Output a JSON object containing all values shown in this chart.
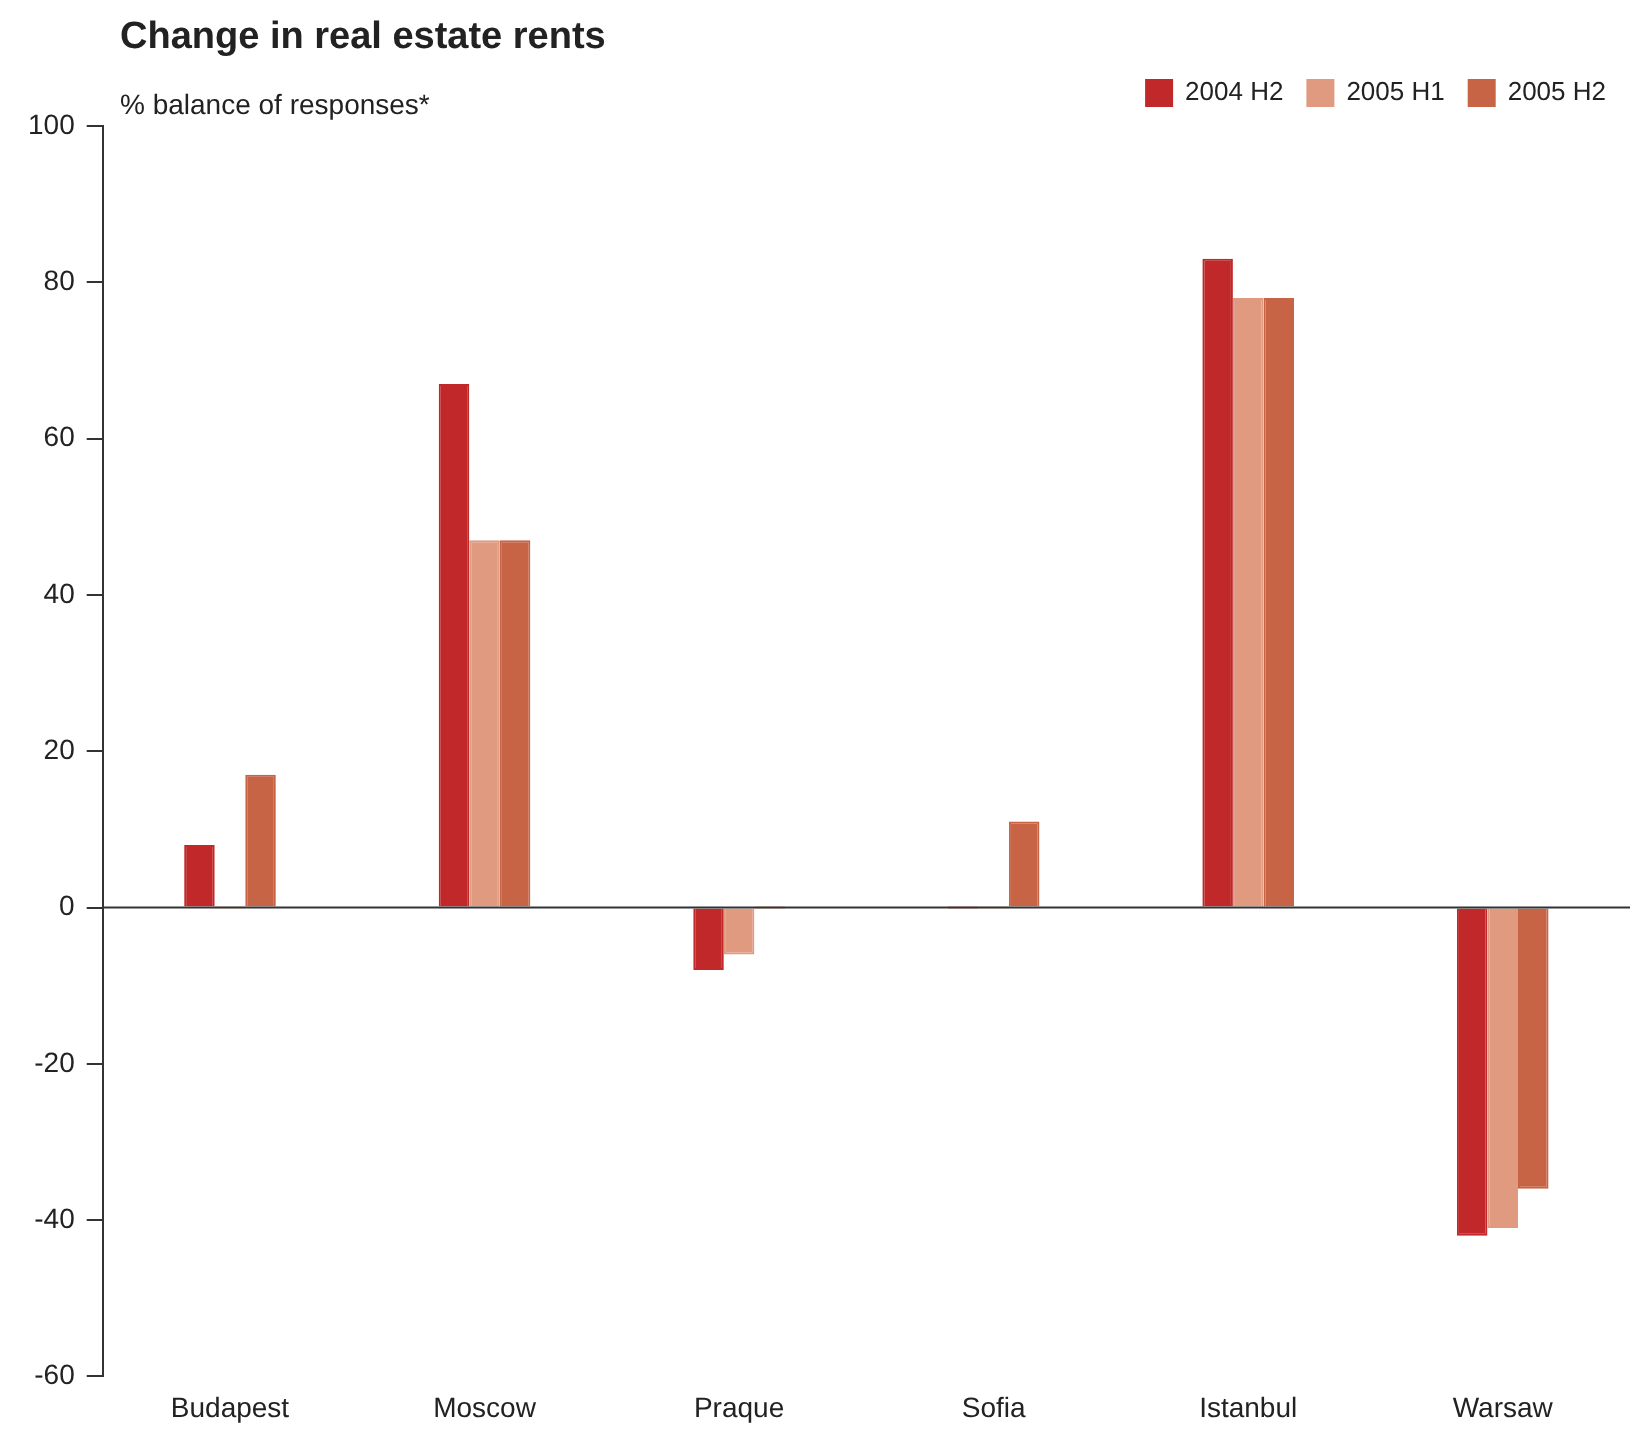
{
  "chart_data": {
    "type": "bar",
    "title": "Change in real estate rents",
    "ylabel": "% balance of responses*",
    "categories": [
      "Budapest",
      "Moscow",
      "Praque",
      "Sofia",
      "Istanbul",
      "Warsaw"
    ],
    "series": [
      {
        "name": "2004 H2",
        "color": "#c0282a",
        "values": [
          8,
          67,
          -8,
          0,
          83,
          -42
        ]
      },
      {
        "name": "2005 H1",
        "color": "#e09a80",
        "values": [
          0,
          47,
          -6,
          0,
          78,
          -41
        ]
      },
      {
        "name": "2005 H2",
        "color": "#c86446",
        "values": [
          17,
          47,
          0,
          11,
          78,
          -36
        ]
      }
    ],
    "ylim": [
      -60,
      100
    ],
    "yticks": [
      -60,
      -40,
      -20,
      0,
      20,
      40,
      60,
      80,
      100
    ],
    "grid": false,
    "legend": "top right",
    "ref_lines": [
      {
        "axis": "y",
        "value": 0,
        "color": "#333333"
      }
    ]
  }
}
